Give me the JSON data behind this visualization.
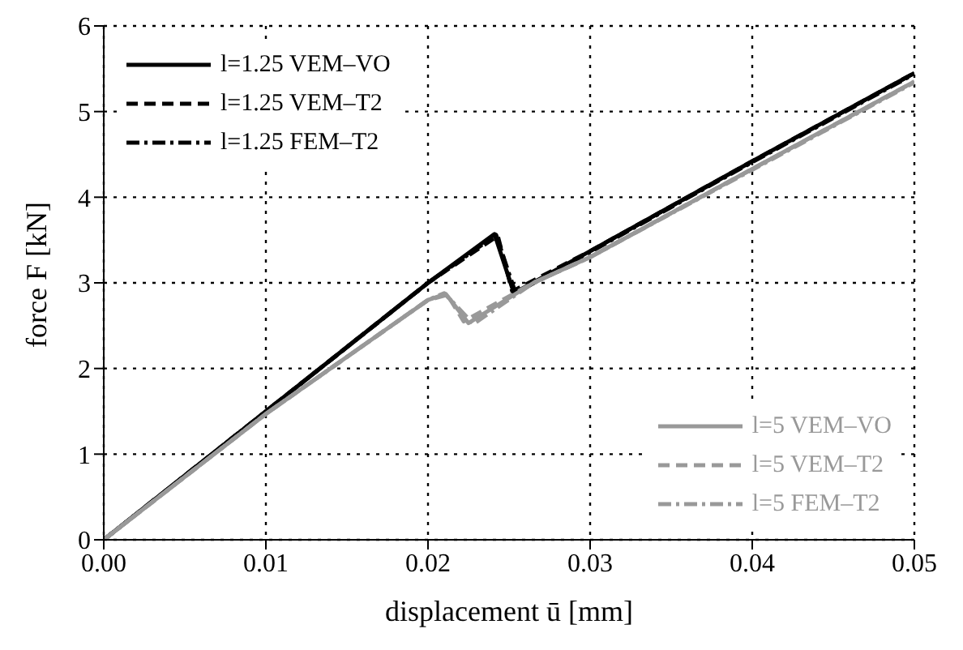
{
  "chart_data": {
    "type": "line",
    "xlabel": "displacement ū [mm]",
    "ylabel": "force F [kN]",
    "xlim": [
      0,
      0.05
    ],
    "ylim": [
      0,
      6
    ],
    "xticks": [
      {
        "value": 0,
        "label": "0.00"
      },
      {
        "value": 0.01,
        "label": "0.01"
      },
      {
        "value": 0.02,
        "label": "0.02"
      },
      {
        "value": 0.03,
        "label": "0.03"
      },
      {
        "value": 0.04,
        "label": "0.04"
      },
      {
        "value": 0.05,
        "label": "0.05"
      }
    ],
    "yticks": [
      0,
      1,
      2,
      3,
      4,
      5,
      6
    ],
    "grid": true,
    "legend": "top left",
    "marker": "none",
    "series": [
      {
        "name": "l=1.25 VEM–VO",
        "color": "#000000",
        "line_style": "solid",
        "x": [
          0,
          0.01,
          0.02,
          0.0241,
          0.0253,
          0.03,
          0.04,
          0.05
        ],
        "values": [
          0,
          1.5,
          3.0,
          3.57,
          2.88,
          3.37,
          4.42,
          5.45
        ]
      },
      {
        "name": "l=1.25 VEM–T2",
        "color": "#000000",
        "line_style": "dashed",
        "x": [
          0,
          0.01,
          0.02,
          0.0243,
          0.0252,
          0.03,
          0.04,
          0.05
        ],
        "values": [
          0,
          1.5,
          3.0,
          3.55,
          2.9,
          3.37,
          4.42,
          5.45
        ]
      },
      {
        "name": "l=1.25 FEM–T2",
        "color": "#000000",
        "line_style": "dashdot",
        "x": [
          0,
          0.01,
          0.02,
          0.0242,
          0.0254,
          0.03,
          0.04,
          0.05
        ],
        "values": [
          0,
          1.5,
          3.0,
          3.56,
          2.88,
          3.36,
          4.41,
          5.44
        ]
      },
      {
        "name": "l=5 VEM–VO",
        "color": "#999999",
        "line_style": "solid",
        "x": [
          0,
          0.01,
          0.02,
          0.0211,
          0.0225,
          0.0265,
          0.03,
          0.04,
          0.05
        ],
        "values": [
          0,
          1.47,
          2.8,
          2.87,
          2.53,
          3.0,
          3.3,
          4.33,
          5.35
        ]
      },
      {
        "name": "l=5 VEM–T2",
        "color": "#999999",
        "line_style": "dashed",
        "x": [
          0,
          0.01,
          0.02,
          0.0212,
          0.0222,
          0.0265,
          0.03,
          0.04,
          0.05
        ],
        "values": [
          0,
          1.47,
          2.8,
          2.86,
          2.55,
          3.0,
          3.3,
          4.33,
          5.35
        ]
      },
      {
        "name": "l=5 FEM–T2",
        "color": "#999999",
        "line_style": "dashdot",
        "x": [
          0,
          0.01,
          0.02,
          0.021,
          0.0228,
          0.0265,
          0.03,
          0.04,
          0.05
        ],
        "values": [
          0,
          1.47,
          2.8,
          2.88,
          2.52,
          3.0,
          3.3,
          4.32,
          5.34
        ]
      }
    ]
  }
}
